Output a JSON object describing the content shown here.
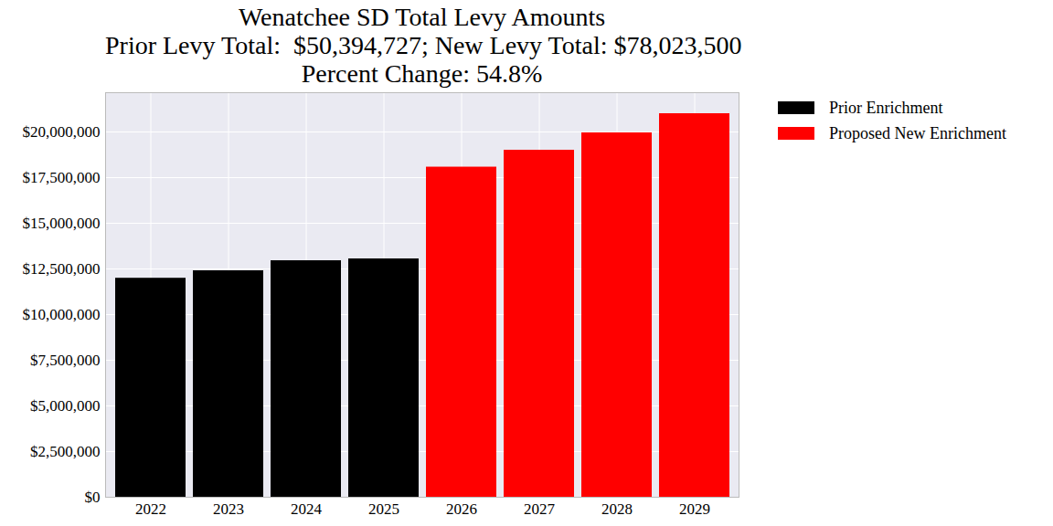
{
  "chart_data": {
    "type": "bar",
    "title": "Wenatchee SD Total Levy Amounts",
    "subtitle": [
      "Prior Levy Total:  $50,394,727; New Levy Total: $78,023,500",
      "Percent Change: 54.8%"
    ],
    "categories": [
      "2022",
      "2023",
      "2024",
      "2025",
      "2026",
      "2027",
      "2028",
      "2029"
    ],
    "series": [
      {
        "name": "Prior Enrichment",
        "color": "#000000",
        "values": [
          11990000,
          12400000,
          12950000,
          13050000,
          null,
          null,
          null,
          null
        ]
      },
      {
        "name": "Proposed New Enrichment",
        "color": "#ff0000",
        "values": [
          null,
          null,
          null,
          null,
          18073500,
          19000000,
          19950000,
          21000000
        ]
      }
    ],
    "ylim": [
      0,
      22150000
    ],
    "yticks": [
      {
        "value": 0,
        "label": "$0"
      },
      {
        "value": 2500000,
        "label": "$2,500,000"
      },
      {
        "value": 5000000,
        "label": "$5,000,000"
      },
      {
        "value": 7500000,
        "label": "$7,500,000"
      },
      {
        "value": 10000000,
        "label": "$10,000,000"
      },
      {
        "value": 12500000,
        "label": "$12,500,000"
      },
      {
        "value": 15000000,
        "label": "$15,000,000"
      },
      {
        "value": 17500000,
        "label": "$17,500,000"
      },
      {
        "value": 20000000,
        "label": "$20,000,000"
      }
    ],
    "grid": true,
    "legend": "right"
  }
}
